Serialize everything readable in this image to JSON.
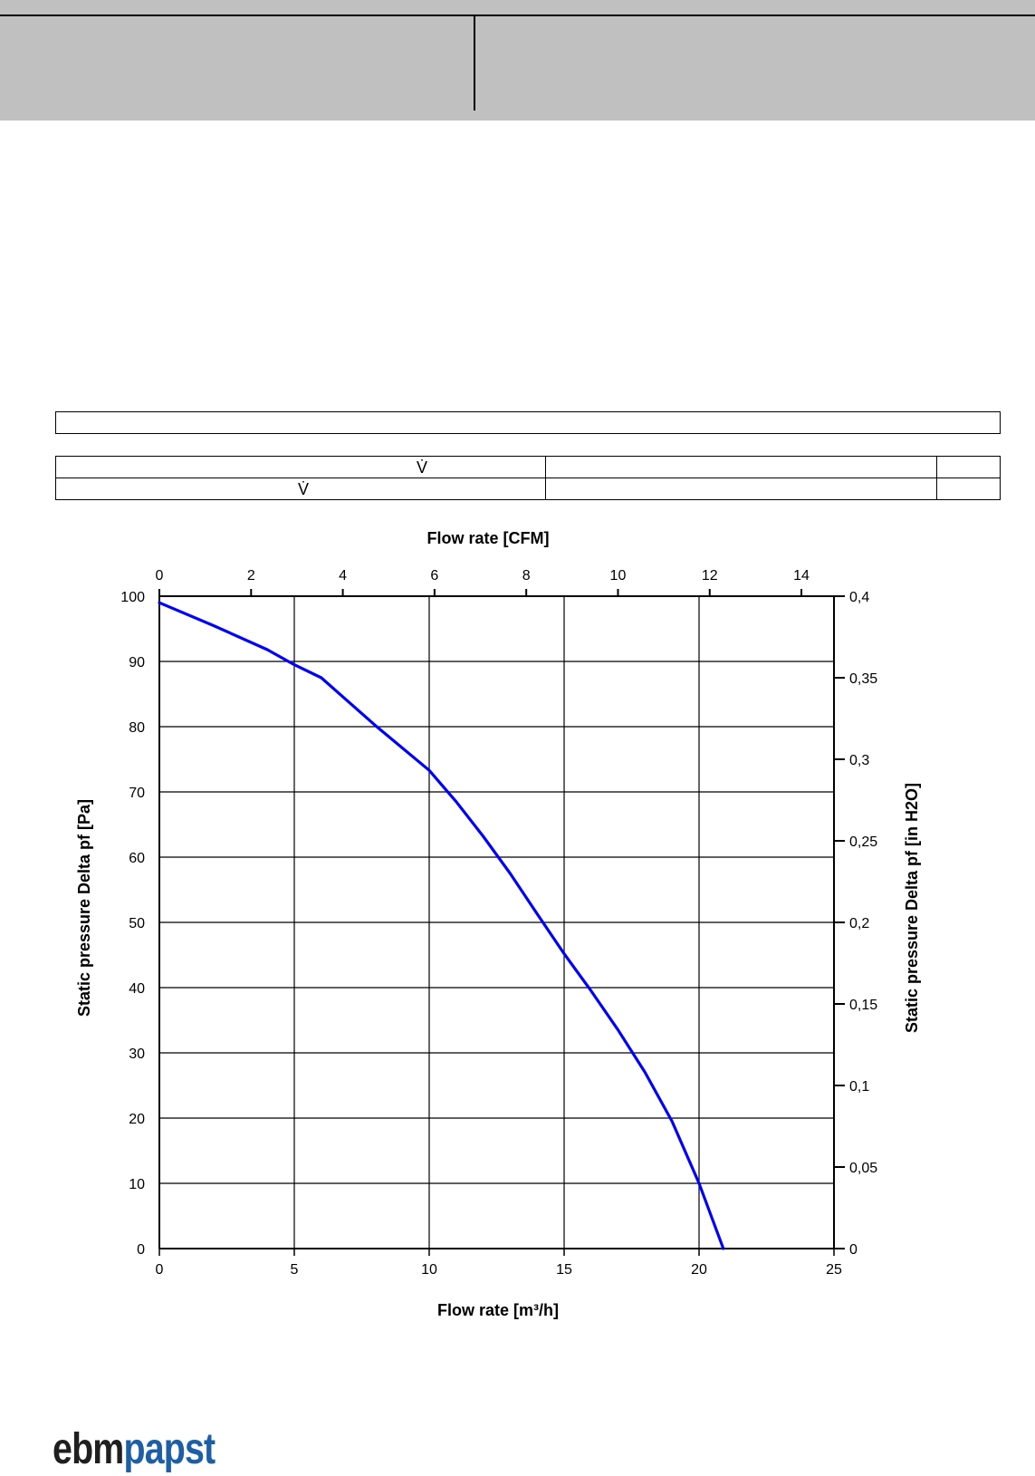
{
  "document": {
    "table_marks": {
      "row1_symbol": "V̇",
      "row2_symbol": "V̇"
    }
  },
  "logo": {
    "part1": "ebm",
    "part2": "papst",
    "colors": {
      "part1": "#1f1f1f",
      "part2": "#1d5fa6"
    }
  },
  "colors": {
    "curve": "#0000ff",
    "header_band": "#c0c0c0",
    "grid": "#000000"
  },
  "chart_data": {
    "type": "line",
    "xlabel": "Flow rate [m³/h]",
    "x2label": "Flow rate [CFM]",
    "ylabel": "Static pressure Delta pf [Pa]",
    "y2label": "Static pressure Delta pf [in H2O]",
    "xlim": [
      0,
      25
    ],
    "ylim": [
      0,
      100
    ],
    "x2lim": [
      0,
      14.71
    ],
    "y2lim": [
      0,
      0.4
    ],
    "x_ticks": [
      "0",
      "5",
      "10",
      "15",
      "20",
      "25"
    ],
    "y_ticks": [
      "0",
      "10",
      "20",
      "30",
      "40",
      "50",
      "60",
      "70",
      "80",
      "90",
      "100"
    ],
    "x2_ticks": [
      "0",
      "2",
      "4",
      "6",
      "8",
      "10",
      "12",
      "14"
    ],
    "y2_ticks": [
      "0",
      "0,05",
      "0,1",
      "0,15",
      "0,2",
      "0,25",
      "0,3",
      "0,35",
      "0,4"
    ],
    "grid": true,
    "series": [
      {
        "x": [
          0,
          2,
          4,
          5,
          6,
          8,
          10,
          11,
          12,
          13,
          14,
          15,
          16,
          17,
          18,
          19,
          20,
          20.9
        ],
        "y": [
          99,
          95.5,
          91.8,
          89.5,
          87.5,
          80.2,
          73.3,
          68.5,
          63.2,
          57.5,
          51.3,
          45.2,
          39.5,
          33.5,
          27.0,
          19.5,
          10,
          0
        ]
      }
    ]
  }
}
